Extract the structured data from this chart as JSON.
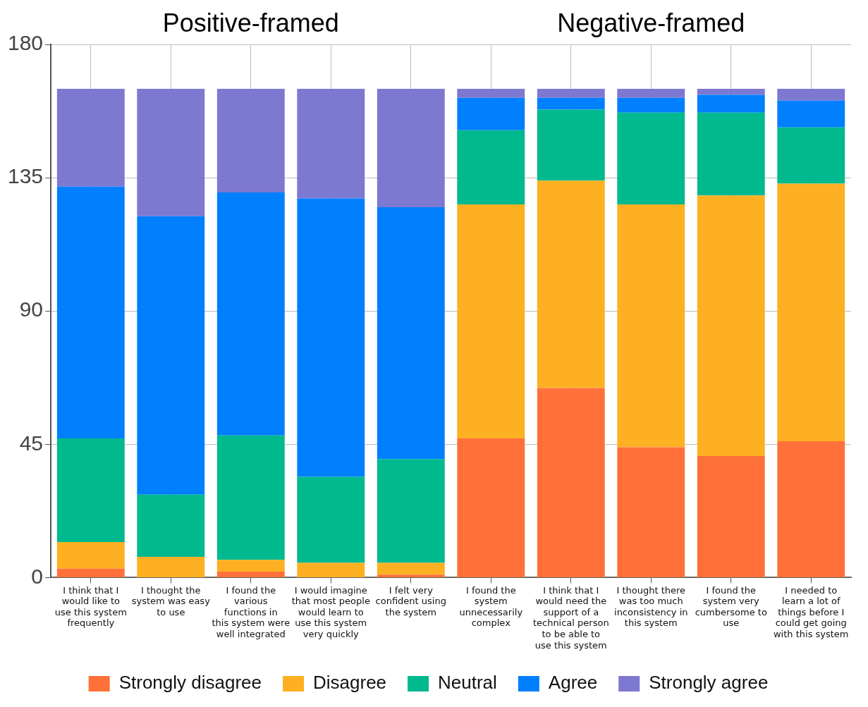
{
  "chart_data": {
    "type": "bar",
    "stacked": true,
    "annotations": [
      "Positive-framed",
      "Negative-framed"
    ],
    "categories": [
      "I think that I would like to use this system frequently",
      "I thought the system was easy to use",
      "I found the various functions in this system were well integrated",
      "I would imagine that most people would learn to use this system very quickly",
      "I felt very confident using the system",
      "I found the system unnecessarily complex",
      "I think that I would need the support of a technical person to be able to use this system",
      "I thought there was too much inconsistency in this system",
      "I found the system very cumbersome to use",
      "I needed to learn a lot of things before I could get going with this system"
    ],
    "series": [
      {
        "name": "Strongly disagree",
        "color": "#ff7139",
        "values": [
          3,
          0,
          2,
          0,
          1,
          47,
          64,
          44,
          41,
          46
        ]
      },
      {
        "name": "Disagree",
        "color": "#fdb022",
        "values": [
          9,
          7,
          4,
          5,
          4,
          79,
          70,
          82,
          88,
          87
        ]
      },
      {
        "name": "Neutral",
        "color": "#00b98f",
        "values": [
          35,
          21,
          42,
          29,
          35,
          25,
          24,
          31,
          28,
          19
        ]
      },
      {
        "name": "Agree",
        "color": "#007fff",
        "values": [
          85,
          94,
          82,
          94,
          85,
          11,
          4,
          5,
          6,
          9
        ]
      },
      {
        "name": "Strongly agree",
        "color": "#7d78d0",
        "values": [
          33,
          43,
          35,
          37,
          40,
          3,
          3,
          3,
          2,
          4
        ]
      }
    ],
    "ylim": [
      0,
      180
    ],
    "yticks": [
      0,
      45,
      90,
      135,
      180
    ],
    "grid": true,
    "legend": "bottom"
  }
}
